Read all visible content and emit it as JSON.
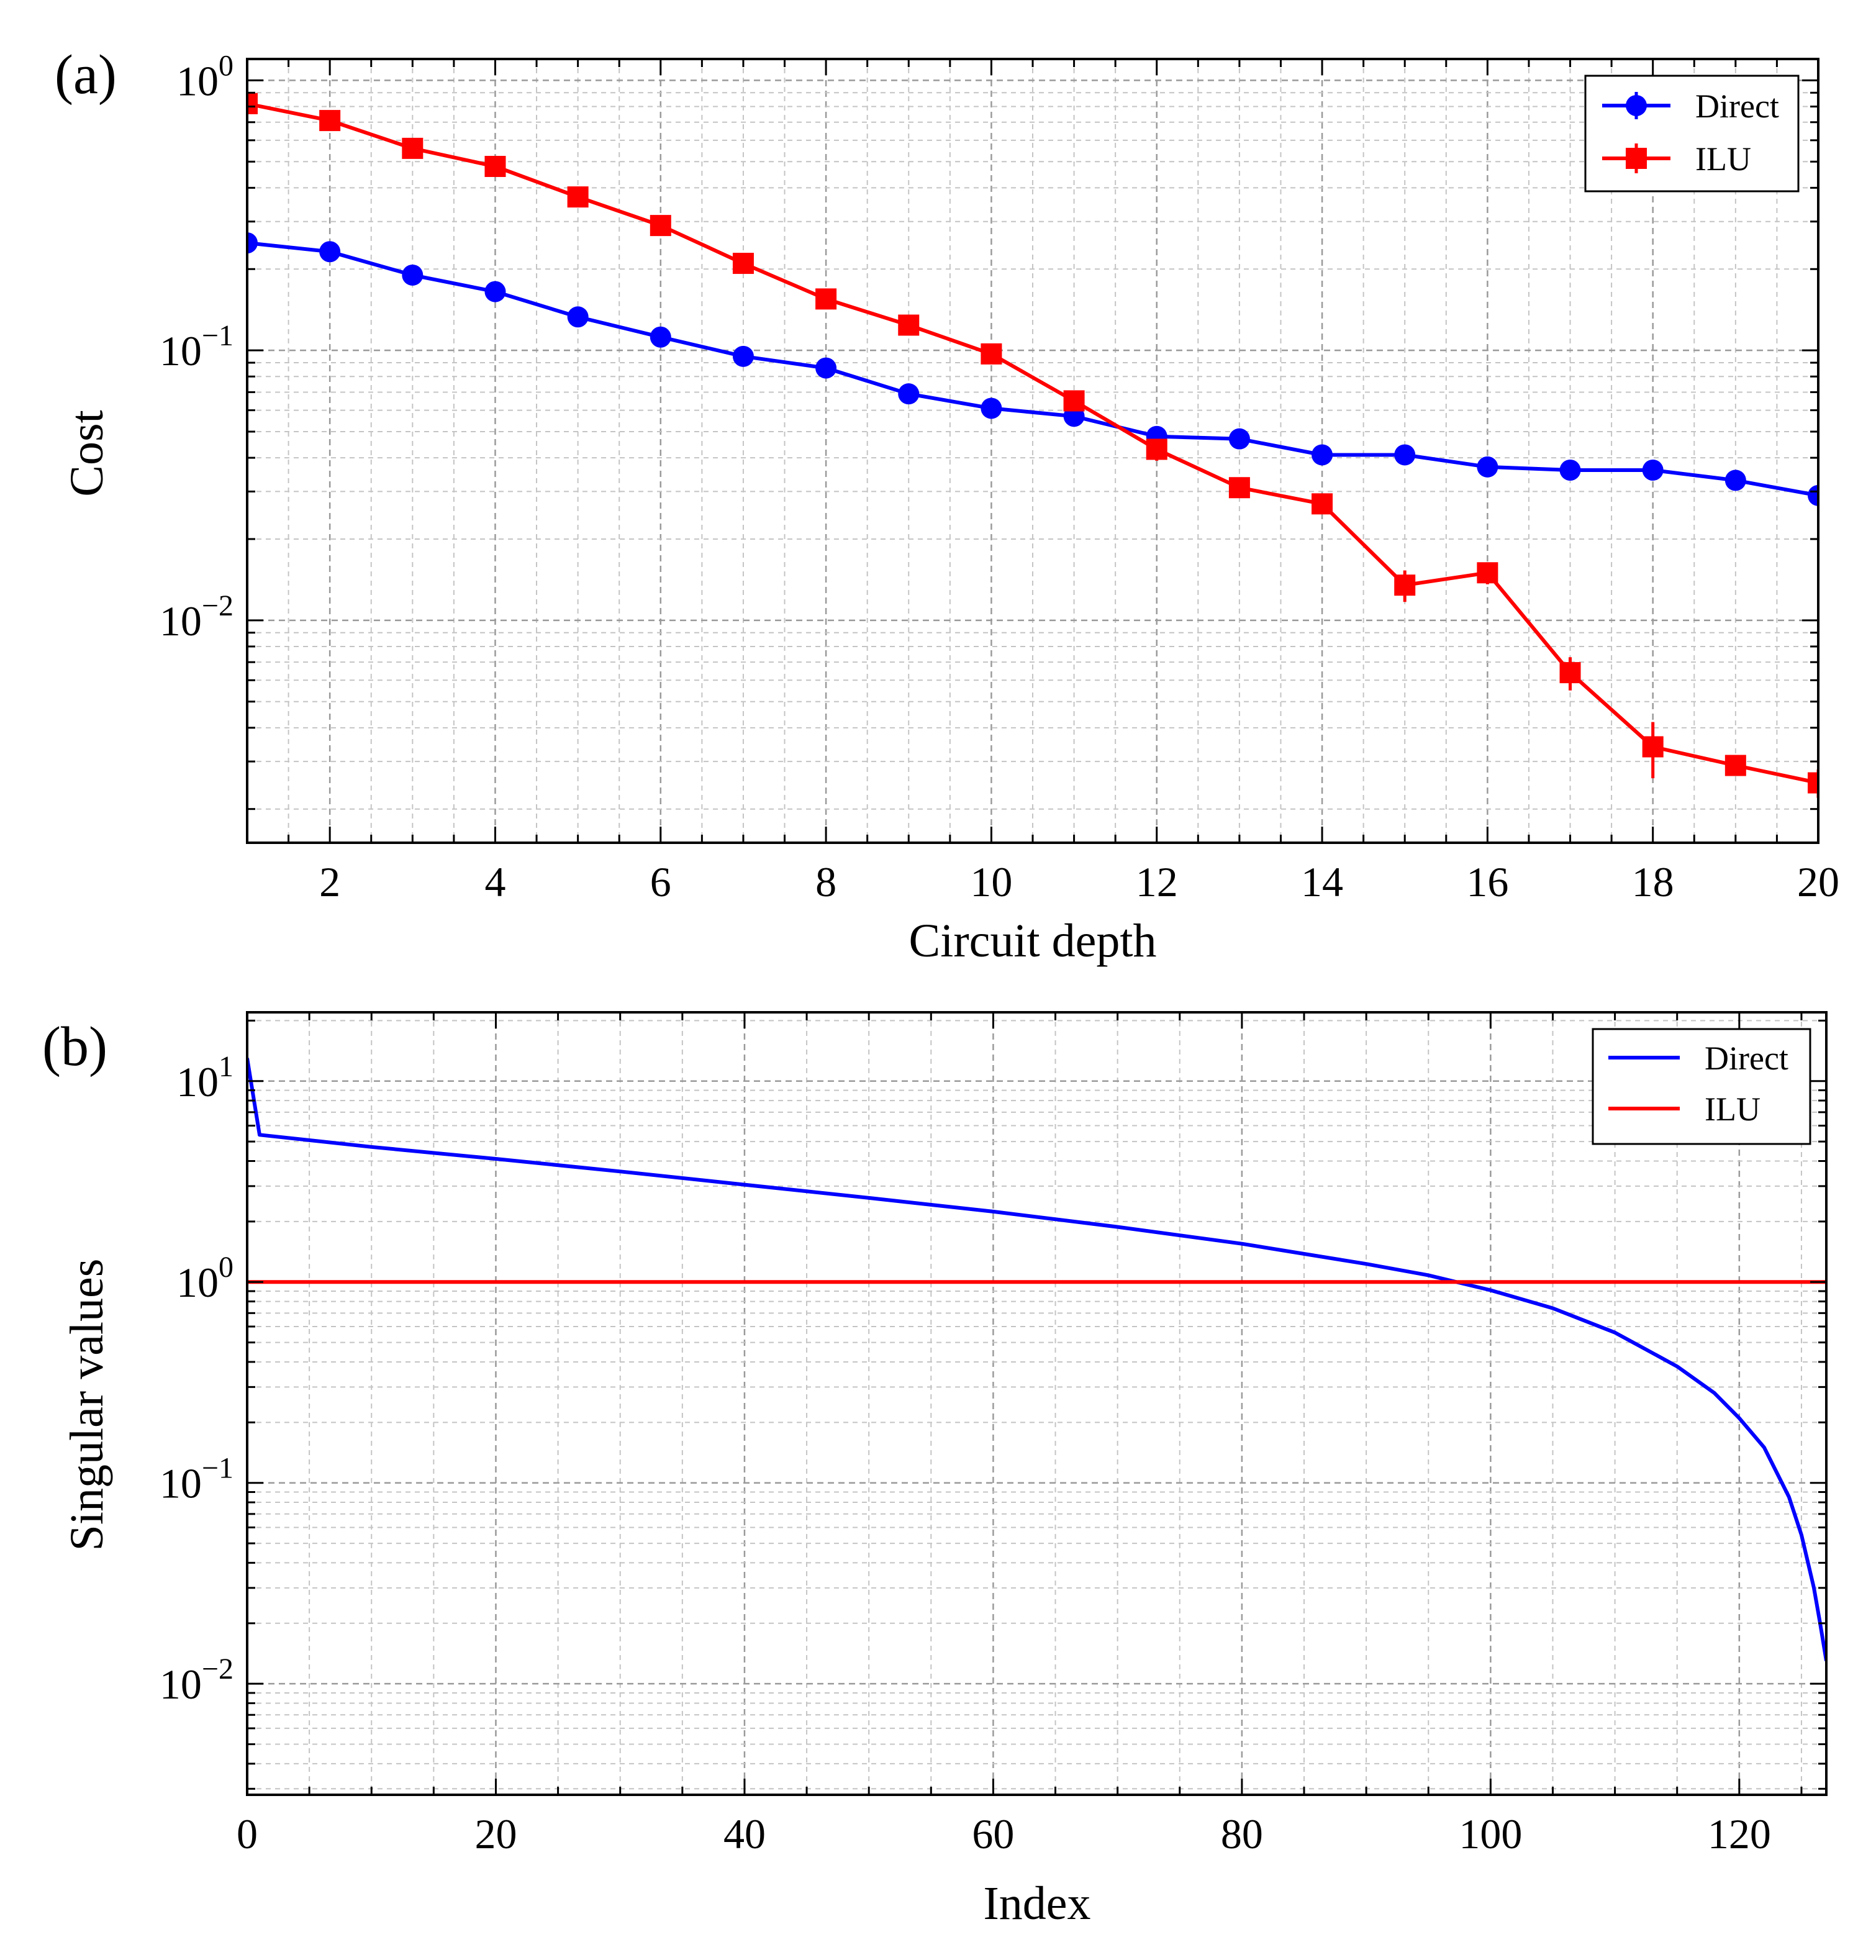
{
  "chart_data": [
    {
      "type": "line",
      "panel_label": "(a)",
      "xlabel": "Circuit depth",
      "ylabel": "Cost",
      "yscale": "log",
      "xlim": [
        1,
        20
      ],
      "ylim": [
        0.0015,
        1.2
      ],
      "xticks": [
        2,
        4,
        6,
        8,
        10,
        12,
        14,
        16,
        18,
        20
      ],
      "yticks": [
        {
          "value": 1,
          "base": "10",
          "exp": "0"
        },
        {
          "value": 0.1,
          "base": "10",
          "exp": "−1"
        },
        {
          "value": 0.01,
          "base": "10",
          "exp": "−2"
        }
      ],
      "grid": true,
      "legend_position": "top-right",
      "series": [
        {
          "name": "Direct",
          "color": "#0000ff",
          "marker": "circle",
          "x": [
            1,
            2,
            3,
            4,
            5,
            6,
            7,
            8,
            9,
            10,
            11,
            12,
            13,
            14,
            15,
            16,
            17,
            18,
            19,
            20
          ],
          "y": [
            0.25,
            0.232,
            0.19,
            0.165,
            0.133,
            0.112,
            0.095,
            0.086,
            0.069,
            0.061,
            0.057,
            0.048,
            0.047,
            0.041,
            0.041,
            0.037,
            0.036,
            0.036,
            0.033,
            0.029
          ],
          "yerr": [
            0,
            0,
            0,
            0,
            0,
            0,
            0,
            0,
            0,
            0,
            0,
            0,
            0,
            0,
            0,
            0,
            0,
            0.003,
            0,
            0
          ]
        },
        {
          "name": "ILU",
          "color": "#ff0000",
          "marker": "square",
          "x": [
            1,
            2,
            3,
            4,
            5,
            6,
            7,
            8,
            9,
            10,
            11,
            12,
            13,
            14,
            15,
            16,
            17,
            18,
            19,
            20
          ],
          "y": [
            0.82,
            0.71,
            0.56,
            0.48,
            0.37,
            0.29,
            0.21,
            0.155,
            0.124,
            0.097,
            0.065,
            0.043,
            0.031,
            0.027,
            0.0135,
            0.015,
            0.0064,
            0.0034,
            0.0029,
            0.0025
          ],
          "yerr": [
            0,
            0,
            0,
            0,
            0,
            0,
            0,
            0,
            0,
            0,
            0,
            0.004,
            0,
            0,
            0.0018,
            0.0014,
            0.0009,
            0.0008,
            0,
            0.0003
          ]
        }
      ]
    },
    {
      "type": "line",
      "panel_label": "(b)",
      "xlabel": "Index",
      "ylabel": "Singular values",
      "yscale": "log",
      "xlim": [
        0,
        127
      ],
      "ylim": [
        0.0028,
        22
      ],
      "xticks": [
        0,
        20,
        40,
        60,
        80,
        100,
        120
      ],
      "yticks": [
        {
          "value": 10,
          "base": "10",
          "exp": "1"
        },
        {
          "value": 1,
          "base": "10",
          "exp": "0"
        },
        {
          "value": 0.1,
          "base": "10",
          "exp": "−1"
        },
        {
          "value": 0.01,
          "base": "10",
          "exp": "−2"
        }
      ],
      "grid": true,
      "legend_position": "top-right",
      "series": [
        {
          "name": "Direct",
          "color": "#0000ff",
          "x": [
            0,
            1,
            10,
            20,
            30,
            40,
            50,
            60,
            70,
            80,
            90,
            95,
            100,
            105,
            110,
            115,
            118,
            120,
            122,
            124,
            125,
            126,
            126.5,
            127
          ],
          "y": [
            13,
            5.4,
            4.7,
            4.1,
            3.55,
            3.05,
            2.62,
            2.24,
            1.88,
            1.55,
            1.23,
            1.08,
            0.91,
            0.74,
            0.56,
            0.38,
            0.28,
            0.21,
            0.15,
            0.085,
            0.055,
            0.03,
            0.02,
            0.013
          ]
        },
        {
          "name": "ILU",
          "color": "#ff0000",
          "x": [
            0,
            127
          ],
          "y": [
            1.0,
            1.0
          ]
        }
      ]
    }
  ]
}
